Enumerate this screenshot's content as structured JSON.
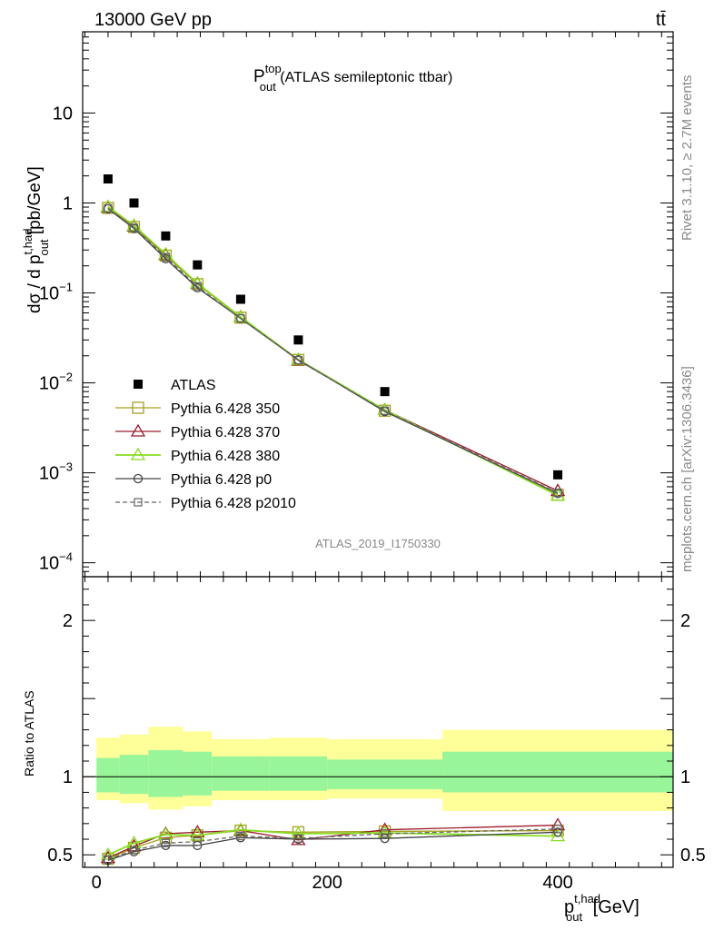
{
  "header": {
    "left": "13000 GeV pp",
    "right": "tt̄"
  },
  "side": {
    "rivet": "Rivet 3.1.10, ≥ 2.7M events",
    "mcplots": "mcplots.cern.ch [arXiv:1306.3436]"
  },
  "title": {
    "main": "P",
    "sup": "top",
    "sub": "out",
    "rest": " (ATLAS semileptonic ttbar)"
  },
  "analysis_id": "ATLAS_2019_I1750330",
  "colors": {
    "data": "#000000",
    "p350": "#a8a020",
    "p370": "#9c1c2c",
    "p380": "#88dd22",
    "p0": "#444444",
    "p2010": "#666666",
    "band_inner": "#99f599",
    "band_outer": "#ffff99"
  },
  "chart_data": [
    {
      "type": "scatter",
      "panel": "main",
      "ylabel": "dσ / d p_out^{t,had} [pb/GeV]",
      "ylabel_parts": {
        "a": "dσ / d p",
        "sup": "t,had",
        "sub": "out",
        "b": " [pb/GeV]"
      },
      "yscale": "log",
      "ylim": [
        7e-05,
        80
      ],
      "xlim": [
        -12,
        500
      ],
      "yticks": [
        {
          "v": 0.0001,
          "base": "10",
          "exp": "−4"
        },
        {
          "v": 0.001,
          "base": "10",
          "exp": "−3"
        },
        {
          "v": 0.01,
          "base": "10",
          "exp": "−2"
        },
        {
          "v": 0.1,
          "base": "10",
          "exp": "−1"
        },
        {
          "v": 1,
          "base": "1",
          "exp": ""
        },
        {
          "v": 10,
          "base": "10",
          "exp": ""
        }
      ],
      "x": [
        10,
        32.5,
        60,
        87.5,
        125,
        175,
        250,
        400
      ],
      "series": [
        {
          "name": "ATLAS",
          "key": "data",
          "marker": "filled-square",
          "values": [
            1.85,
            1.0,
            0.43,
            0.205,
            0.085,
            0.03,
            0.008,
            0.00095
          ]
        },
        {
          "name": "Pythia 6.428 350",
          "key": "p350",
          "marker": "open-square",
          "line": "solid",
          "values": [
            0.88,
            0.54,
            0.26,
            0.125,
            0.053,
            0.018,
            0.0049,
            0.00057
          ]
        },
        {
          "name": "Pythia 6.428 370",
          "key": "p370",
          "marker": "open-triangle",
          "line": "solid",
          "values": [
            0.89,
            0.55,
            0.265,
            0.127,
            0.054,
            0.0178,
            0.005,
            0.00063
          ]
        },
        {
          "name": "Pythia 6.428 380",
          "key": "p380",
          "marker": "open-triangle",
          "line": "solid",
          "values": [
            0.91,
            0.56,
            0.27,
            0.128,
            0.054,
            0.0181,
            0.005,
            0.00056
          ]
        },
        {
          "name": "Pythia 6.428 p0",
          "key": "p0",
          "marker": "open-circle",
          "line": "solid",
          "values": [
            0.86,
            0.52,
            0.24,
            0.114,
            0.052,
            0.018,
            0.0048,
            0.00059
          ]
        },
        {
          "name": "Pythia 6.428 p2010",
          "key": "p2010",
          "marker": "small-open-square",
          "line": "dashed",
          "values": [
            0.87,
            0.53,
            0.25,
            0.118,
            0.052,
            0.0179,
            0.0049,
            0.0006
          ]
        }
      ]
    },
    {
      "type": "line",
      "panel": "ratio",
      "ylabel": "Ratio to ATLAS",
      "ylim": [
        0.42,
        2.28
      ],
      "xlim": [
        -12,
        500
      ],
      "yticks": [
        0.5,
        1,
        2
      ],
      "xticks": [
        0,
        200,
        400
      ],
      "xlabel_parts": {
        "a": "p",
        "sup": "t,had",
        "sub": "out",
        "b": " [GeV]"
      },
      "bands": [
        {
          "x0": 0,
          "x1": 20,
          "inner": [
            0.9,
            1.12
          ],
          "outer": [
            0.85,
            1.25
          ]
        },
        {
          "x0": 20,
          "x1": 45,
          "inner": [
            0.89,
            1.14
          ],
          "outer": [
            0.83,
            1.27
          ]
        },
        {
          "x0": 45,
          "x1": 75,
          "inner": [
            0.87,
            1.17
          ],
          "outer": [
            0.79,
            1.32
          ]
        },
        {
          "x0": 75,
          "x1": 100,
          "inner": [
            0.88,
            1.16
          ],
          "outer": [
            0.81,
            1.29
          ]
        },
        {
          "x0": 100,
          "x1": 150,
          "inner": [
            0.91,
            1.13
          ],
          "outer": [
            0.85,
            1.24
          ]
        },
        {
          "x0": 150,
          "x1": 200,
          "inner": [
            0.91,
            1.13
          ],
          "outer": [
            0.85,
            1.25
          ]
        },
        {
          "x0": 200,
          "x1": 300,
          "inner": [
            0.92,
            1.11
          ],
          "outer": [
            0.86,
            1.24
          ]
        },
        {
          "x0": 300,
          "x1": 500,
          "inner": [
            0.9,
            1.16
          ],
          "outer": [
            0.78,
            1.3
          ]
        }
      ],
      "x": [
        10,
        32.5,
        60,
        87.5,
        125,
        175,
        250,
        400
      ],
      "series": [
        {
          "name": "Pythia 6.428 350",
          "key": "p350",
          "marker": "open-square",
          "line": "solid",
          "values": [
            0.475,
            0.545,
            0.61,
            0.625,
            0.655,
            0.645,
            0.65,
            0.655
          ]
        },
        {
          "name": "Pythia 6.428 370",
          "key": "p370",
          "marker": "open-triangle",
          "line": "solid",
          "values": [
            0.48,
            0.555,
            0.635,
            0.645,
            0.655,
            0.595,
            0.66,
            0.69
          ]
        },
        {
          "name": "Pythia 6.428 380",
          "key": "p380",
          "marker": "open-triangle",
          "line": "solid",
          "values": [
            0.5,
            0.575,
            0.63,
            0.625,
            0.66,
            0.635,
            0.64,
            0.62
          ]
        },
        {
          "name": "Pythia 6.428 p0",
          "key": "p0",
          "marker": "open-circle",
          "line": "solid",
          "values": [
            0.465,
            0.52,
            0.56,
            0.56,
            0.61,
            0.6,
            0.605,
            0.645
          ]
        },
        {
          "name": "Pythia 6.428 p2010",
          "key": "p2010",
          "marker": "small-open-square",
          "line": "dashed",
          "values": [
            0.47,
            0.53,
            0.575,
            0.585,
            0.62,
            0.605,
            0.635,
            0.665
          ]
        }
      ]
    }
  ]
}
